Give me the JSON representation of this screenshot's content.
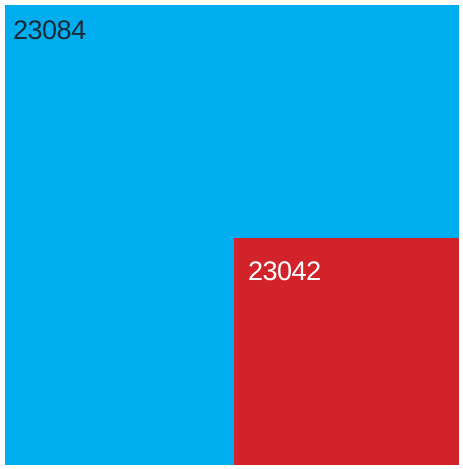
{
  "tiles": [
    {
      "label": "23084",
      "fill": "#00AEEF",
      "text_color": "#1a2a33"
    },
    {
      "label": "23042",
      "fill": "#D2232A",
      "text_color": "#ffffff"
    }
  ]
}
